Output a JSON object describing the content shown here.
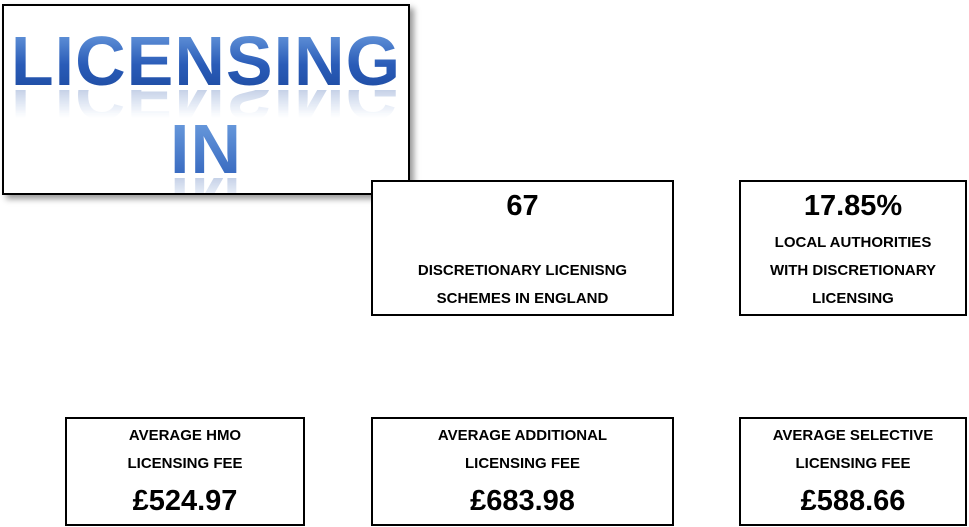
{
  "title": {
    "lines": [
      "LICENSING",
      "IN ENGLAND"
    ]
  },
  "stats": [
    {
      "value": "67",
      "label": [
        "DISCRETIONARY LICENISNG",
        "SCHEMES IN ENGLAND"
      ]
    },
    {
      "value": "17.85%",
      "label": [
        "LOCAL AUTHORITIES",
        "WITH DISCRETIONARY",
        "LICENSING"
      ]
    }
  ],
  "fees": [
    {
      "label": [
        "AVERAGE HMO",
        "LICENSING FEE"
      ],
      "value": "£524.97"
    },
    {
      "label": [
        "AVERAGE ADDITIONAL",
        "LICENSING FEE"
      ],
      "value": "£683.98"
    },
    {
      "label": [
        "AVERAGE SELECTIVE",
        "LICENSING FEE"
      ],
      "value": "£588.66"
    }
  ]
}
